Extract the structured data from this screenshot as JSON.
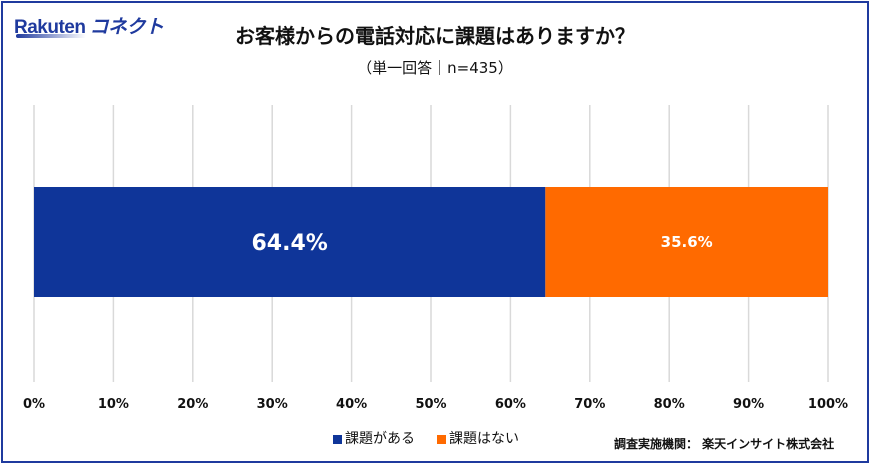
{
  "logo": {
    "brand": "Rakuten",
    "kana": "コネクト"
  },
  "source": "調査実施機関： 楽天インサイト株式会社",
  "chart_data": {
    "type": "bar",
    "orientation": "horizontal-stacked-100",
    "title": "お客様からの電話対応に課題はありますか？",
    "subtitle": "（単一回答｜n=435）",
    "xlim": [
      0,
      100
    ],
    "ticks": [
      "0%",
      "10%",
      "20%",
      "30%",
      "40%",
      "50%",
      "60%",
      "70%",
      "80%",
      "90%",
      "100%"
    ],
    "grid": true,
    "legend_placement": "bottom",
    "series": [
      {
        "name": "課題がある",
        "value": 64.4,
        "label": "64.4%",
        "color": "#0f3599"
      },
      {
        "name": "課題はない",
        "value": 35.6,
        "label": "35.6%",
        "color": "#ff6a00"
      }
    ]
  }
}
